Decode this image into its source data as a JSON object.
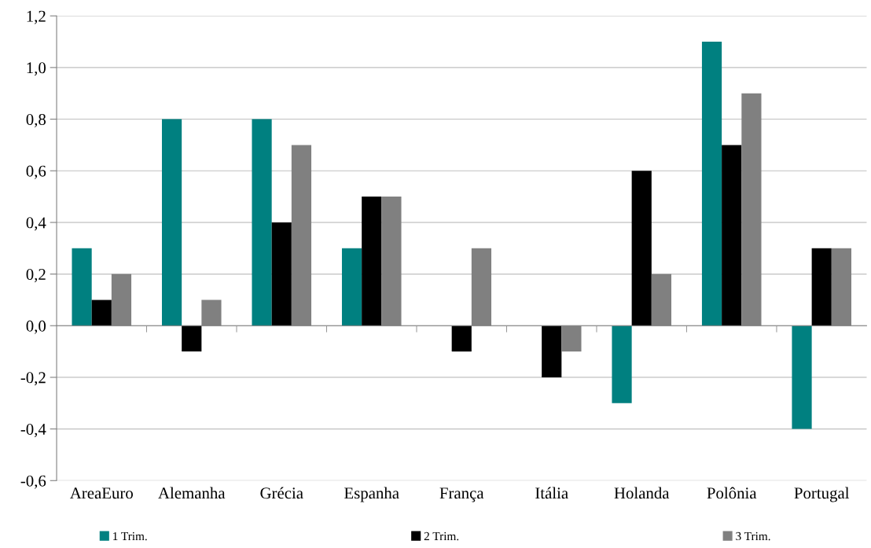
{
  "chart_data": {
    "type": "bar",
    "categories": [
      "AreaEuro",
      "Alemanha",
      "Grécia",
      "Espanha",
      "França",
      "Itália",
      "Holanda",
      "Polônia",
      "Portugal"
    ],
    "series": [
      {
        "name": "1 Trim.",
        "color": "#008080",
        "values": [
          0.3,
          0.8,
          0.8,
          0.3,
          0,
          0,
          -0.3,
          1.1,
          -0.4
        ]
      },
      {
        "name": "2 Trim.",
        "color": "#000000",
        "values": [
          0.1,
          -0.1,
          0.4,
          0.5,
          -0.1,
          -0.2,
          0.6,
          0.7,
          0.3
        ]
      },
      {
        "name": "3 Trim.",
        "color": "#808080",
        "values": [
          0.2,
          0.1,
          0.7,
          0.5,
          0.3,
          -0.1,
          0.2,
          0.9,
          0.3
        ]
      }
    ],
    "ylim": [
      -0.6,
      1.2
    ],
    "yticks": [
      {
        "value": -0.6,
        "label": "-0,6"
      },
      {
        "value": -0.4,
        "label": "-0,4"
      },
      {
        "value": -0.2,
        "label": "-0,2"
      },
      {
        "value": 0,
        "label": "0,0"
      },
      {
        "value": 0.2,
        "label": "0,2"
      },
      {
        "value": 0.4,
        "label": "0,4"
      },
      {
        "value": 0.6,
        "label": "0,6"
      },
      {
        "value": 0.8,
        "label": "0,8"
      },
      {
        "value": 1.0,
        "label": "1,0"
      },
      {
        "value": 1.2,
        "label": "1,2"
      }
    ],
    "grid": "y",
    "legend": "bottom"
  }
}
